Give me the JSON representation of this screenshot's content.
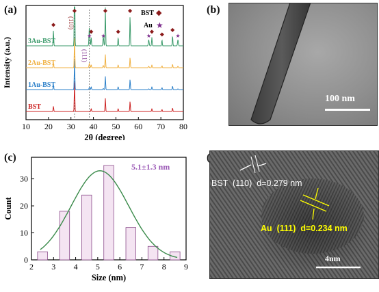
{
  "panels": {
    "a": "(a)",
    "b": "(b)",
    "c": "(c)",
    "d": "(d)"
  },
  "panel_b": {
    "scale_label": "100 nm"
  },
  "panel_d": {
    "bst_label": "BST  (110)  d=0.279 nm",
    "au_label": "Au  (111)  d=0.234 nm",
    "scale_label": "4nm",
    "colors": {
      "bst_label": "#ffffff",
      "au_label": "#ffff00"
    }
  },
  "chart_data": [
    {
      "type": "line",
      "xlabel": "2θ (degree)",
      "ylabel": "Intensity (a.u.)",
      "xlim": [
        10,
        80
      ],
      "xticks": [
        10,
        20,
        30,
        40,
        50,
        60,
        70,
        80
      ],
      "series": [
        {
          "name": "BST",
          "color": "#cc2222",
          "offset": 0
        },
        {
          "name": "1Au-BST",
          "color": "#2a7fc9",
          "offset": 1
        },
        {
          "name": "2Au-BST",
          "color": "#f0b040",
          "offset": 2
        },
        {
          "name": "3Au-BST",
          "color": "#3a9a6a",
          "offset": 3
        }
      ],
      "bst_peaks": [
        22.2,
        31.6,
        39.0,
        45.3,
        51.0,
        56.3,
        66.0,
        70.5,
        75.2
      ],
      "au_peaks": [
        38.2,
        44.4,
        64.6,
        77.6
      ],
      "peak_heights": {
        "22.2": 0.18,
        "31.6": 1.0,
        "39.0": 0.25,
        "45.3": 0.45,
        "51.0": 0.1,
        "56.3": 0.35,
        "66.0": 0.2,
        "70.5": 0.07,
        "75.2": 0.12
      },
      "annotations": {
        "bst_110": "(110)",
        "au_111": "(111)"
      },
      "legend": [
        {
          "label": "BST",
          "symbol": "◆",
          "color": "#8b1a1a"
        },
        {
          "label": "Au",
          "symbol": "★",
          "color": "#7a2a8a"
        }
      ],
      "reference_lines_x": [
        31.6,
        38.2
      ]
    },
    {
      "type": "bar",
      "xlabel": "Size (nm)",
      "ylabel": "Count",
      "xlim": [
        2,
        9
      ],
      "ylim": [
        0,
        38
      ],
      "xticks": [
        2,
        3,
        4,
        5,
        6,
        7,
        8,
        9
      ],
      "yticks": [
        0,
        10,
        20,
        30
      ],
      "bins": [
        2.5,
        3.5,
        4.5,
        5.5,
        6.5,
        7.5,
        8.5
      ],
      "values": [
        3,
        18,
        24,
        35,
        12,
        5,
        3
      ],
      "bar_color": "#f4e4f2",
      "bar_edge": "#8a4a8a",
      "fit": {
        "mean": 5.1,
        "sd": 1.3,
        "peak": 33,
        "color": "#3a8a4a"
      },
      "annotation": "5.1±1.3 nm",
      "annotation_color": "#9b59b6"
    }
  ]
}
